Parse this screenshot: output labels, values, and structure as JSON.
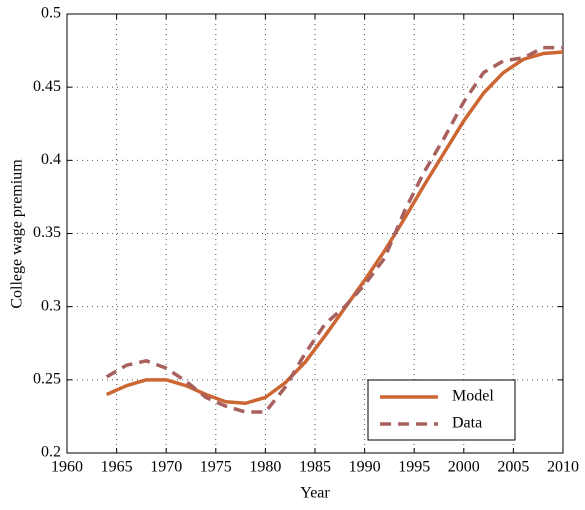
{
  "chart_data": {
    "type": "line",
    "xlabel": "Year",
    "ylabel": "College wage premium",
    "x": [
      1964,
      1966,
      1968,
      1970,
      1972,
      1974,
      1976,
      1978,
      1980,
      1982,
      1984,
      1986,
      1988,
      1990,
      1992,
      1994,
      1996,
      1998,
      2000,
      2002,
      2004,
      2006,
      2008,
      2010
    ],
    "series": [
      {
        "name": "Model",
        "color": "#cc6633",
        "dashed": false,
        "values": [
          0.24,
          0.246,
          0.25,
          0.25,
          0.246,
          0.24,
          0.235,
          0.234,
          0.238,
          0.248,
          0.262,
          0.28,
          0.299,
          0.318,
          0.338,
          0.36,
          0.383,
          0.405,
          0.427,
          0.446,
          0.46,
          0.469,
          0.473,
          0.474
        ]
      },
      {
        "name": "Data",
        "color": "#a8605e",
        "dashed": true,
        "values": [
          0.252,
          0.26,
          0.263,
          0.258,
          0.249,
          0.238,
          0.232,
          0.228,
          0.228,
          0.245,
          0.268,
          0.288,
          0.3,
          0.315,
          0.333,
          0.365,
          0.392,
          0.415,
          0.44,
          0.46,
          0.468,
          0.47,
          0.477,
          0.477
        ]
      }
    ],
    "xlim": [
      1960,
      2010
    ],
    "xticks": [
      1960,
      1965,
      1970,
      1975,
      1980,
      1985,
      1990,
      1995,
      2000,
      2005,
      2010
    ],
    "ylim": [
      0.2,
      0.5
    ],
    "yticks": [
      0.2,
      0.25,
      0.3,
      0.35,
      0.4,
      0.45,
      0.5
    ],
    "grid": true,
    "legend": "lower right"
  }
}
